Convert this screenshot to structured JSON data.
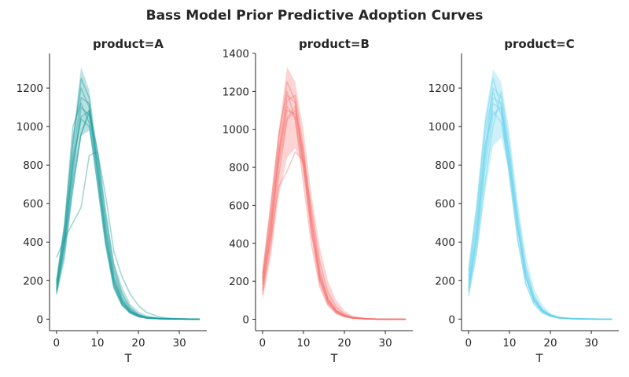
{
  "figure": {
    "title": "Bass Model Prior Predictive Adoption Curves"
  },
  "chart_data": [
    {
      "type": "line",
      "title": "product=A",
      "xlabel": "T",
      "ylabel": "",
      "xlim": [
        -1.7,
        36.7
      ],
      "ylim": [
        -60,
        1380
      ],
      "xticks": [
        0,
        10,
        20,
        30
      ],
      "yticks": [
        0,
        200,
        400,
        600,
        800,
        1000,
        1200
      ],
      "color": "#1a9a9a",
      "band": {
        "x": [
          0,
          2,
          4,
          6,
          8,
          10,
          12,
          14,
          16,
          18,
          20,
          22,
          25,
          28,
          32,
          35
        ],
        "lower": [
          120,
          300,
          650,
          950,
          980,
          760,
          420,
          160,
          70,
          30,
          15,
          8,
          3,
          1,
          0,
          0
        ],
        "upper": [
          200,
          520,
          950,
          1310,
          1190,
          880,
          560,
          300,
          170,
          80,
          40,
          20,
          8,
          3,
          1,
          0
        ]
      },
      "series": [
        {
          "x": [
            0,
            2,
            4,
            6,
            8,
            10,
            12,
            14,
            16,
            18,
            20,
            22,
            25,
            28,
            32,
            35
          ],
          "y": [
            150,
            420,
            800,
            1050,
            1080,
            820,
            480,
            220,
            100,
            45,
            20,
            8,
            3,
            1,
            0,
            0
          ]
        },
        {
          "x": [
            0,
            2,
            4,
            6,
            8,
            10,
            12,
            14,
            16,
            18,
            20,
            22,
            25,
            28,
            32,
            35
          ],
          "y": [
            180,
            460,
            900,
            1250,
            1150,
            780,
            420,
            180,
            80,
            35,
            15,
            6,
            2,
            1,
            0,
            0
          ]
        },
        {
          "x": [
            0,
            2,
            4,
            6,
            8,
            10,
            12,
            14,
            16,
            18,
            20,
            22,
            25,
            28,
            32,
            35
          ],
          "y": [
            320,
            420,
            500,
            580,
            850,
            870,
            640,
            350,
            220,
            130,
            70,
            35,
            12,
            4,
            1,
            0
          ]
        },
        {
          "x": [
            0,
            2,
            4,
            6,
            8,
            10,
            12,
            14,
            16,
            18,
            20,
            22,
            25,
            28,
            32,
            35
          ],
          "y": [
            140,
            380,
            720,
            960,
            1070,
            880,
            560,
            280,
            130,
            60,
            25,
            10,
            4,
            1,
            0,
            0
          ]
        },
        {
          "x": [
            0,
            2,
            4,
            6,
            8,
            10,
            12,
            14,
            16,
            18,
            20,
            22,
            25,
            28,
            32,
            35
          ],
          "y": [
            200,
            500,
            1000,
            1120,
            1020,
            700,
            380,
            160,
            70,
            30,
            12,
            5,
            2,
            0,
            0,
            0
          ]
        },
        {
          "x": [
            0,
            2,
            4,
            6,
            8,
            10,
            12,
            14,
            16,
            18,
            20,
            22,
            25,
            28,
            32,
            35
          ],
          "y": [
            160,
            400,
            760,
            1100,
            1060,
            760,
            440,
            200,
            90,
            40,
            18,
            7,
            2,
            1,
            0,
            0
          ]
        },
        {
          "x": [
            0,
            2,
            4,
            6,
            8,
            10,
            12,
            14,
            16,
            18,
            20,
            22,
            25,
            28,
            32,
            35
          ],
          "y": [
            170,
            440,
            820,
            1040,
            1000,
            720,
            400,
            190,
            85,
            38,
            16,
            6,
            2,
            1,
            0,
            0
          ]
        },
        {
          "x": [
            0,
            2,
            4,
            6,
            8,
            10,
            12,
            14,
            16,
            18,
            20,
            22,
            25,
            28,
            32,
            35
          ],
          "y": [
            130,
            350,
            680,
            960,
            1090,
            860,
            520,
            250,
            110,
            50,
            22,
            9,
            3,
            1,
            0,
            0
          ]
        },
        {
          "x": [
            0,
            2,
            4,
            6,
            8,
            10,
            12,
            14,
            16,
            18,
            20,
            22,
            25,
            28,
            32,
            35
          ],
          "y": [
            190,
            480,
            940,
            1200,
            1100,
            740,
            400,
            170,
            75,
            32,
            14,
            5,
            2,
            0,
            0,
            0
          ]
        },
        {
          "x": [
            0,
            2,
            4,
            6,
            8,
            10,
            12,
            14,
            16,
            18,
            20,
            22,
            25,
            28,
            32,
            35
          ],
          "y": [
            150,
            410,
            840,
            1150,
            1120,
            800,
            460,
            210,
            95,
            42,
            19,
            8,
            3,
            1,
            0,
            0
          ]
        }
      ]
    },
    {
      "type": "line",
      "title": "product=B",
      "xlabel": "T",
      "ylabel": "",
      "xlim": [
        -1.7,
        36.7
      ],
      "ylim": [
        -60,
        1400
      ],
      "xticks": [
        0,
        10,
        20,
        30
      ],
      "yticks": [
        0,
        200,
        400,
        600,
        800,
        1000,
        1200,
        1400
      ],
      "color": "#f4706e",
      "band": {
        "x": [
          0,
          2,
          4,
          6,
          8,
          10,
          12,
          14,
          16,
          18,
          20,
          22,
          25,
          28,
          32,
          35
        ],
        "lower": [
          100,
          320,
          650,
          850,
          900,
          800,
          500,
          200,
          80,
          30,
          12,
          5,
          2,
          1,
          0,
          0
        ],
        "upper": [
          250,
          620,
          1000,
          1330,
          1250,
          1000,
          650,
          380,
          200,
          100,
          45,
          20,
          8,
          3,
          1,
          0
        ]
      },
      "series": [
        {
          "x": [
            0,
            2,
            4,
            6,
            8,
            10,
            12,
            14,
            16,
            18,
            20,
            22,
            25,
            28,
            32,
            35
          ],
          "y": [
            150,
            450,
            850,
            1100,
            1080,
            820,
            480,
            220,
            100,
            45,
            20,
            8,
            3,
            1,
            0,
            0
          ]
        },
        {
          "x": [
            0,
            2,
            4,
            6,
            8,
            10,
            12,
            14,
            16,
            18,
            20,
            22,
            25,
            28,
            32,
            35
          ],
          "y": [
            220,
            560,
            950,
            1250,
            1150,
            800,
            440,
            190,
            80,
            35,
            15,
            6,
            2,
            1,
            0,
            0
          ]
        },
        {
          "x": [
            0,
            2,
            4,
            6,
            8,
            10,
            12,
            14,
            16,
            18,
            20,
            22,
            25,
            28,
            32,
            35
          ],
          "y": [
            180,
            420,
            700,
            780,
            880,
            840,
            580,
            300,
            140,
            65,
            28,
            11,
            4,
            1,
            0,
            0
          ]
        },
        {
          "x": [
            0,
            2,
            4,
            6,
            8,
            10,
            12,
            14,
            16,
            18,
            20,
            22,
            25,
            28,
            32,
            35
          ],
          "y": [
            200,
            500,
            880,
            1150,
            1180,
            900,
            520,
            230,
            100,
            42,
            18,
            7,
            2,
            1,
            0,
            0
          ]
        },
        {
          "x": [
            0,
            2,
            4,
            6,
            8,
            10,
            12,
            14,
            16,
            18,
            20,
            22,
            25,
            28,
            32,
            35
          ],
          "y": [
            130,
            380,
            760,
            1050,
            1100,
            880,
            540,
            260,
            115,
            50,
            22,
            9,
            3,
            1,
            0,
            0
          ]
        },
        {
          "x": [
            0,
            2,
            4,
            6,
            8,
            10,
            12,
            14,
            16,
            18,
            20,
            22,
            25,
            28,
            32,
            35
          ],
          "y": [
            240,
            600,
            980,
            1200,
            1050,
            720,
            390,
            170,
            72,
            30,
            13,
            5,
            2,
            0,
            0,
            0
          ]
        },
        {
          "x": [
            0,
            2,
            4,
            6,
            8,
            10,
            12,
            14,
            16,
            18,
            20,
            22,
            25,
            28,
            32,
            35
          ],
          "y": [
            160,
            440,
            820,
            1060,
            1120,
            860,
            500,
            240,
            105,
            46,
            20,
            8,
            3,
            1,
            0,
            0
          ]
        },
        {
          "x": [
            0,
            2,
            4,
            6,
            8,
            10,
            12,
            14,
            16,
            18,
            20,
            22,
            25,
            28,
            32,
            35
          ],
          "y": [
            190,
            480,
            870,
            1120,
            1060,
            780,
            450,
            210,
            92,
            40,
            17,
            7,
            2,
            1,
            0,
            0
          ]
        },
        {
          "x": [
            0,
            2,
            4,
            6,
            8,
            10,
            12,
            14,
            16,
            18,
            20,
            22,
            25,
            28,
            32,
            35
          ],
          "y": [
            210,
            520,
            900,
            1180,
            1140,
            830,
            470,
            200,
            88,
            38,
            16,
            6,
            2,
            1,
            0,
            0
          ]
        }
      ]
    },
    {
      "type": "line",
      "title": "product=C",
      "xlabel": "T",
      "ylabel": "",
      "xlim": [
        -1.7,
        36.7
      ],
      "ylim": [
        -60,
        1380
      ],
      "xticks": [
        0,
        10,
        20,
        30
      ],
      "yticks": [
        0,
        200,
        400,
        600,
        800,
        1000,
        1200
      ],
      "color": "#5ed0ea",
      "band": {
        "x": [
          0,
          2,
          4,
          6,
          8,
          10,
          12,
          14,
          16,
          18,
          20,
          22,
          25,
          28,
          32,
          35
        ],
        "lower": [
          110,
          320,
          650,
          900,
          940,
          760,
          460,
          210,
          90,
          35,
          15,
          6,
          2,
          1,
          0,
          0
        ],
        "upper": [
          280,
          620,
          1050,
          1300,
          1230,
          980,
          620,
          330,
          160,
          75,
          32,
          14,
          5,
          2,
          1,
          0
        ]
      },
      "series": [
        {
          "x": [
            0,
            2,
            4,
            6,
            8,
            10,
            12,
            14,
            16,
            18,
            20,
            22,
            25,
            28,
            32,
            35
          ],
          "y": [
            150,
            440,
            850,
            1150,
            1120,
            820,
            480,
            220,
            100,
            45,
            20,
            8,
            3,
            1,
            0,
            0
          ]
        },
        {
          "x": [
            0,
            2,
            4,
            6,
            8,
            10,
            12,
            14,
            16,
            18,
            20,
            22,
            25,
            28,
            32,
            35
          ],
          "y": [
            250,
            580,
            1000,
            1250,
            1100,
            760,
            420,
            180,
            78,
            33,
            14,
            5,
            2,
            0,
            0,
            0
          ]
        },
        {
          "x": [
            0,
            2,
            4,
            6,
            8,
            10,
            12,
            14,
            16,
            18,
            20,
            22,
            25,
            28,
            32,
            35
          ],
          "y": [
            120,
            360,
            700,
            1000,
            1180,
            900,
            550,
            270,
            120,
            52,
            22,
            9,
            3,
            1,
            0,
            0
          ]
        },
        {
          "x": [
            0,
            2,
            4,
            6,
            8,
            10,
            12,
            14,
            16,
            18,
            20,
            22,
            25,
            28,
            32,
            35
          ],
          "y": [
            200,
            500,
            900,
            1080,
            1020,
            780,
            460,
            210,
            92,
            40,
            17,
            7,
            2,
            1,
            0,
            0
          ]
        },
        {
          "x": [
            0,
            2,
            4,
            6,
            8,
            10,
            12,
            14,
            16,
            18,
            20,
            22,
            25,
            28,
            32,
            35
          ],
          "y": [
            180,
            460,
            880,
            1200,
            1150,
            840,
            490,
            230,
            102,
            44,
            19,
            8,
            3,
            1,
            0,
            0
          ]
        },
        {
          "x": [
            0,
            2,
            4,
            6,
            8,
            10,
            12,
            14,
            16,
            18,
            20,
            22,
            25,
            28,
            32,
            35
          ],
          "y": [
            140,
            400,
            780,
            1060,
            1100,
            860,
            520,
            250,
            110,
            48,
            21,
            8,
            3,
            1,
            0,
            0
          ]
        },
        {
          "x": [
            0,
            2,
            4,
            6,
            8,
            10,
            12,
            14,
            16,
            18,
            20,
            22,
            25,
            28,
            32,
            35
          ],
          "y": [
            220,
            540,
            960,
            1180,
            1060,
            740,
            410,
            185,
            80,
            34,
            15,
            6,
            2,
            0,
            0,
            0
          ]
        },
        {
          "x": [
            0,
            2,
            4,
            6,
            8,
            10,
            12,
            14,
            16,
            18,
            20,
            22,
            25,
            28,
            32,
            35
          ],
          "y": [
            160,
            420,
            820,
            1120,
            1090,
            800,
            470,
            215,
            96,
            42,
            18,
            7,
            2,
            1,
            0,
            0
          ]
        }
      ]
    }
  ]
}
